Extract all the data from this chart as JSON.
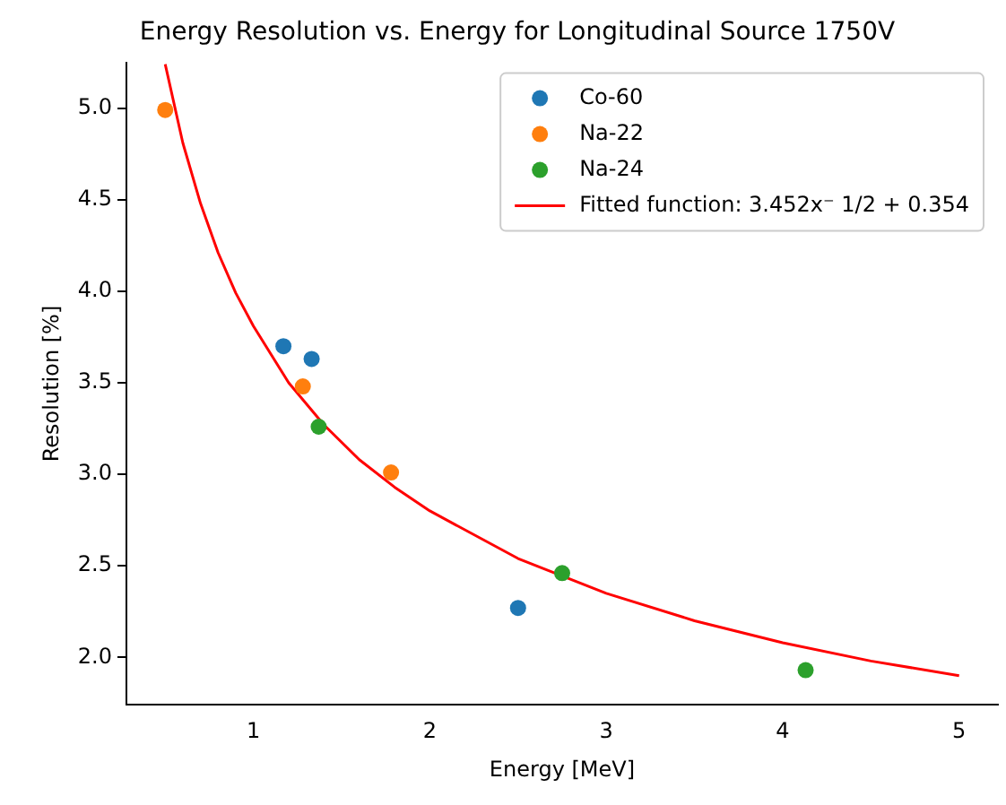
{
  "chart_data": {
    "type": "scatter",
    "title": "Energy Resolution vs. Energy for Longitudinal Source 1750V",
    "xlabel": "Energy [MeV]",
    "ylabel": "Resolution [%]",
    "xlim": [
      0.28,
      5.22
    ],
    "ylim": [
      1.74,
      5.25
    ],
    "xticks": [
      1,
      2,
      3,
      4,
      5
    ],
    "yticks": [
      {
        "value": 2,
        "label": "2.0"
      },
      2.5,
      {
        "value": 3,
        "label": "3.0"
      },
      3.5,
      {
        "value": 4,
        "label": "4.0"
      },
      4.5,
      {
        "value": 5,
        "label": "5.0"
      }
    ],
    "grid": false,
    "legend": "top right",
    "marker": "circle",
    "series": [
      {
        "name": "Co-60",
        "color": "#1f77b4",
        "x": [
          1.17,
          1.33,
          2.5
        ],
        "values": [
          3.7,
          3.63,
          2.27
        ]
      },
      {
        "name": "Na-22",
        "color": "#ff7f0e",
        "x": [
          0.5,
          1.28,
          1.78
        ],
        "values": [
          4.99,
          3.48,
          3.01
        ]
      },
      {
        "name": "Na-24",
        "color": "#2ca02c",
        "x": [
          1.37,
          2.75,
          4.13
        ],
        "values": [
          3.26,
          2.46,
          1.93
        ]
      },
      {
        "name": "Fitted function: 3.452x⁻ 1/2 + 0.354",
        "type": "line",
        "color": "#ff0000",
        "marker": "none",
        "line_style": "solid",
        "x": [
          0.5,
          0.6,
          0.7,
          0.8,
          0.9,
          1.0,
          1.2,
          1.4,
          1.6,
          1.8,
          2.0,
          2.5,
          3.0,
          3.5,
          4.0,
          4.5,
          5.0
        ],
        "values": [
          5.24,
          4.81,
          4.48,
          4.21,
          3.99,
          3.81,
          3.5,
          3.27,
          3.08,
          2.93,
          2.8,
          2.54,
          2.35,
          2.2,
          2.08,
          1.98,
          1.9
        ]
      }
    ]
  }
}
